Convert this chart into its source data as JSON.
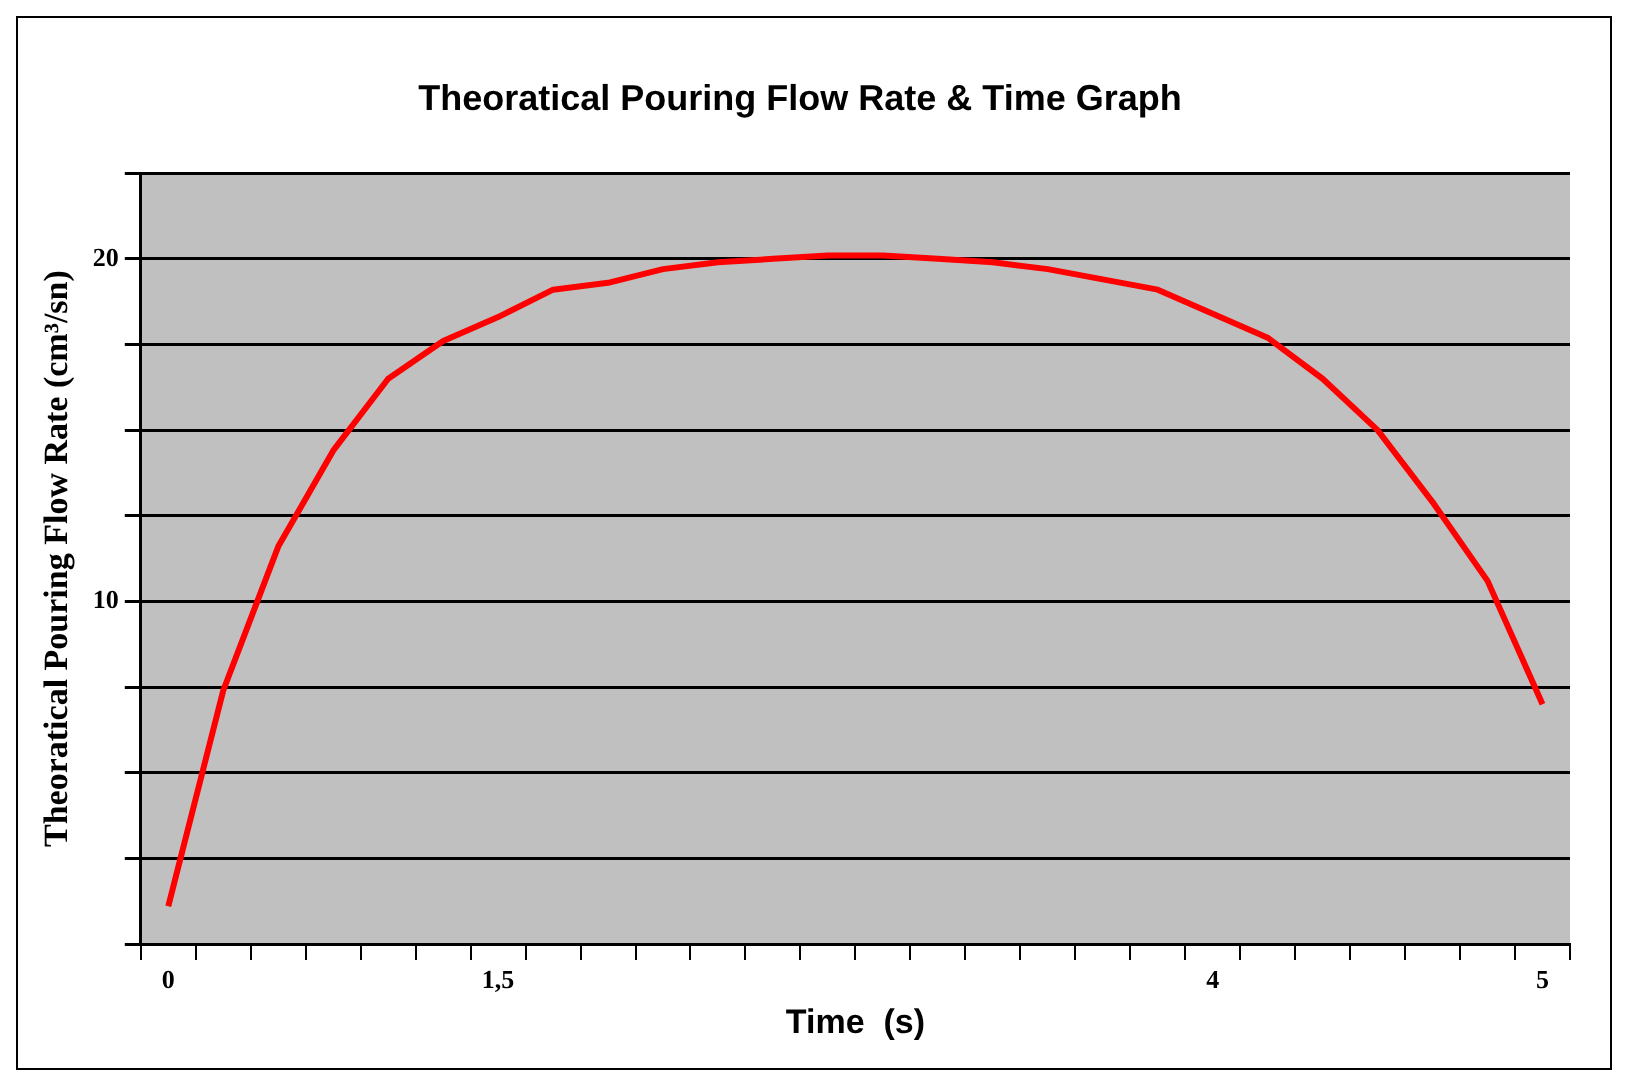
{
  "chart_data": {
    "type": "line",
    "title": "Theoratical Pouring Flow Rate & Time Graph",
    "xlabel": "Time  (s)",
    "ylabel": "Theoratical Pouring Flow Rate (cm³/sn)",
    "categories": [
      "0",
      null,
      null,
      null,
      null,
      null,
      "1,5",
      null,
      null,
      null,
      null,
      null,
      null,
      null,
      null,
      null,
      null,
      null,
      null,
      "4",
      null,
      null,
      null,
      null,
      null,
      "5"
    ],
    "series": [
      {
        "color": "#ff0000",
        "values": [
          1.1,
          7.4,
          11.6,
          14.4,
          16.5,
          17.6,
          18.3,
          19.1,
          19.3,
          19.7,
          19.9,
          20.0,
          20.1,
          20.1,
          20.0,
          19.9,
          19.7,
          19.4,
          19.1,
          18.4,
          17.7,
          16.5,
          15.0,
          12.9,
          10.6,
          7.0
        ]
      }
    ],
    "ylim": [
      0,
      22.5
    ],
    "yticks": [
      {
        "value": 0,
        "label": null
      },
      {
        "value": 2.5,
        "label": null
      },
      {
        "value": 5,
        "label": null
      },
      {
        "value": 7.5,
        "label": null
      },
      10,
      {
        "value": 12.5,
        "label": null
      },
      {
        "value": 15,
        "label": null
      },
      {
        "value": 17.5,
        "label": null
      },
      20,
      {
        "value": 22.5,
        "label": null
      }
    ],
    "grid": "y",
    "legend": false,
    "marker": "none",
    "line_style": "solid"
  }
}
